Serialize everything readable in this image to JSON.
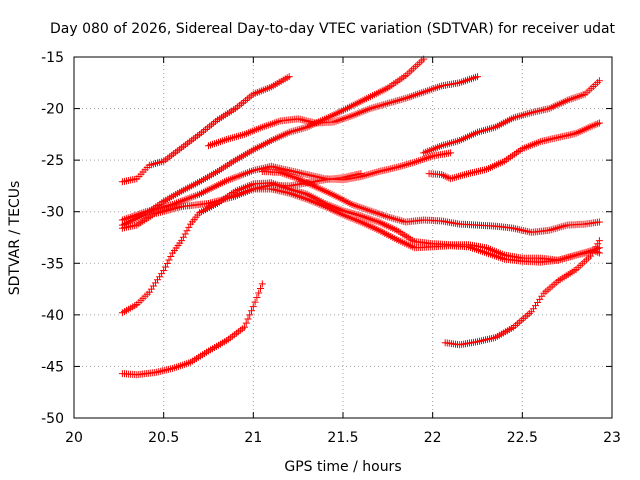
{
  "chart_data": {
    "type": "scatter",
    "title": "Day 080 of 2026, Sidereal Day-to-day VTEC variation (SDTVAR) for receiver udat",
    "xlabel": "GPS time / hours",
    "ylabel": "SDTVAR / TECUs",
    "xlim": [
      20,
      23
    ],
    "ylim": [
      -50,
      -15
    ],
    "xticks": [
      {
        "v": 20,
        "label": "20"
      },
      {
        "v": 20.5,
        "label": "20.5"
      },
      {
        "v": 21,
        "label": "21"
      },
      {
        "v": 21.5,
        "label": "21.5"
      },
      {
        "v": 22,
        "label": "22"
      },
      {
        "v": 22.5,
        "label": "22.5"
      },
      {
        "v": 23,
        "label": "23"
      }
    ],
    "yticks": [
      {
        "v": -15,
        "label": "-15"
      },
      {
        "v": -20,
        "label": "-20"
      },
      {
        "v": -25,
        "label": "-25"
      },
      {
        "v": -30,
        "label": "-30"
      },
      {
        "v": -35,
        "label": "-35"
      },
      {
        "v": -40,
        "label": "-40"
      },
      {
        "v": -45,
        "label": "-45"
      },
      {
        "v": -50,
        "label": "-50"
      }
    ],
    "grid": true,
    "marker": "+",
    "marker_color": "#ff0000",
    "series": [
      {
        "name": "s1",
        "points": [
          [
            20.27,
            -27.1
          ],
          [
            20.35,
            -26.8
          ],
          [
            20.42,
            -25.5
          ],
          [
            20.5,
            -25.1
          ],
          [
            20.6,
            -23.8
          ],
          [
            20.7,
            -22.5
          ],
          [
            20.8,
            -21.1
          ],
          [
            20.9,
            -20.0
          ],
          [
            21.0,
            -18.6
          ],
          [
            21.1,
            -17.9
          ],
          [
            21.2,
            -16.9
          ]
        ]
      },
      {
        "name": "s2",
        "points": [
          [
            20.27,
            -31.3
          ],
          [
            20.4,
            -30.2
          ],
          [
            20.5,
            -29.0
          ],
          [
            20.6,
            -28.0
          ],
          [
            20.7,
            -27.1
          ],
          [
            20.8,
            -26.1
          ],
          [
            20.9,
            -25.0
          ],
          [
            21.0,
            -24.0
          ],
          [
            21.1,
            -23.1
          ],
          [
            21.2,
            -22.3
          ],
          [
            21.3,
            -21.8
          ],
          [
            21.45,
            -20.6
          ],
          [
            21.6,
            -19.3
          ],
          [
            21.75,
            -18.0
          ],
          [
            21.85,
            -16.8
          ],
          [
            21.95,
            -15.2
          ]
        ]
      },
      {
        "name": "s3",
        "points": [
          [
            20.27,
            -30.8
          ],
          [
            20.4,
            -30.0
          ],
          [
            20.55,
            -29.3
          ],
          [
            20.7,
            -28.3
          ],
          [
            20.85,
            -27.0
          ],
          [
            21.0,
            -26.0
          ],
          [
            21.1,
            -25.6
          ],
          [
            21.2,
            -26.0
          ],
          [
            21.3,
            -26.4
          ],
          [
            21.4,
            -26.8
          ],
          [
            21.5,
            -26.9
          ],
          [
            21.6,
            -26.6
          ],
          [
            21.7,
            -26.1
          ],
          [
            21.8,
            -25.7
          ],
          [
            21.9,
            -25.2
          ],
          [
            22.0,
            -24.6
          ],
          [
            22.1,
            -24.3
          ]
        ]
      },
      {
        "name": "s4",
        "points": [
          [
            20.27,
            -31.6
          ],
          [
            20.35,
            -31.3
          ],
          [
            20.45,
            -30.2
          ],
          [
            20.6,
            -29.5
          ],
          [
            20.75,
            -29.2
          ],
          [
            20.9,
            -28.5
          ],
          [
            21.0,
            -27.8
          ],
          [
            21.1,
            -27.4
          ],
          [
            21.2,
            -27.5
          ],
          [
            21.3,
            -27.2
          ],
          [
            21.4,
            -26.9
          ],
          [
            21.5,
            -26.7
          ],
          [
            21.6,
            -26.3
          ]
        ]
      },
      {
        "name": "s5",
        "points": [
          [
            20.27,
            -39.8
          ],
          [
            20.35,
            -39.0
          ],
          [
            20.42,
            -37.8
          ],
          [
            20.5,
            -35.7
          ],
          [
            20.55,
            -34.0
          ],
          [
            20.6,
            -32.8
          ],
          [
            20.65,
            -31.2
          ],
          [
            20.7,
            -30.1
          ],
          [
            20.8,
            -29.2
          ],
          [
            20.9,
            -28.0
          ],
          [
            21.0,
            -27.3
          ],
          [
            21.1,
            -27.2
          ],
          [
            21.2,
            -27.8
          ],
          [
            21.3,
            -28.3
          ],
          [
            21.4,
            -29.2
          ],
          [
            21.5,
            -29.9
          ],
          [
            21.6,
            -30.4
          ],
          [
            21.7,
            -31.0
          ],
          [
            21.8,
            -31.8
          ],
          [
            21.9,
            -32.9
          ],
          [
            22.0,
            -33.1
          ],
          [
            22.1,
            -33.2
          ],
          [
            22.2,
            -33.2
          ],
          [
            22.3,
            -33.5
          ],
          [
            22.4,
            -34.2
          ],
          [
            22.5,
            -34.5
          ],
          [
            22.6,
            -34.5
          ],
          [
            22.7,
            -34.7
          ],
          [
            22.8,
            -34.2
          ],
          [
            22.9,
            -33.7
          ],
          [
            22.93,
            -33.5
          ]
        ]
      },
      {
        "name": "s6",
        "points": [
          [
            20.9,
            -28.4
          ],
          [
            21.0,
            -27.8
          ],
          [
            21.1,
            -27.8
          ],
          [
            21.2,
            -28.2
          ],
          [
            21.3,
            -28.8
          ],
          [
            21.4,
            -29.5
          ],
          [
            21.5,
            -30.3
          ],
          [
            21.6,
            -31.0
          ],
          [
            21.7,
            -31.8
          ],
          [
            21.8,
            -32.7
          ],
          [
            21.9,
            -33.5
          ],
          [
            22.0,
            -33.4
          ],
          [
            22.1,
            -33.3
          ],
          [
            22.2,
            -33.4
          ],
          [
            22.3,
            -34.0
          ],
          [
            22.4,
            -34.6
          ],
          [
            22.5,
            -34.8
          ],
          [
            22.6,
            -34.9
          ],
          [
            22.7,
            -34.7
          ],
          [
            22.8,
            -34.2
          ],
          [
            22.9,
            -33.8
          ],
          [
            22.93,
            -34.0
          ]
        ]
      },
      {
        "name": "s7",
        "points": [
          [
            21.05,
            -26.1
          ],
          [
            21.15,
            -26.2
          ],
          [
            21.25,
            -26.8
          ],
          [
            21.35,
            -27.6
          ],
          [
            21.45,
            -28.4
          ],
          [
            21.55,
            -29.3
          ],
          [
            21.65,
            -29.9
          ],
          [
            21.75,
            -30.5
          ],
          [
            21.85,
            -31.0
          ],
          [
            21.95,
            -30.8
          ],
          [
            22.05,
            -30.9
          ],
          [
            22.15,
            -31.2
          ],
          [
            22.25,
            -31.3
          ],
          [
            22.35,
            -31.4
          ],
          [
            22.45,
            -31.6
          ],
          [
            22.55,
            -32.0
          ],
          [
            22.65,
            -31.8
          ],
          [
            22.75,
            -31.3
          ],
          [
            22.85,
            -31.2
          ],
          [
            22.93,
            -31.0
          ]
        ]
      },
      {
        "name": "s8",
        "points": [
          [
            20.27,
            -45.7
          ],
          [
            20.35,
            -45.8
          ],
          [
            20.45,
            -45.6
          ],
          [
            20.55,
            -45.2
          ],
          [
            20.65,
            -44.6
          ],
          [
            20.75,
            -43.5
          ],
          [
            20.85,
            -42.5
          ],
          [
            20.95,
            -41.2
          ],
          [
            21.0,
            -39.2
          ],
          [
            21.05,
            -37.0
          ]
        ]
      },
      {
        "name": "s9",
        "points": [
          [
            20.75,
            -23.6
          ],
          [
            20.85,
            -23.0
          ],
          [
            20.95,
            -22.5
          ],
          [
            21.05,
            -21.8
          ],
          [
            21.15,
            -21.2
          ],
          [
            21.25,
            -21.0
          ],
          [
            21.35,
            -21.4
          ],
          [
            21.45,
            -21.3
          ],
          [
            21.55,
            -20.7
          ],
          [
            21.65,
            -20.0
          ],
          [
            21.75,
            -19.5
          ],
          [
            21.85,
            -19.0
          ],
          [
            21.95,
            -18.4
          ],
          [
            22.05,
            -17.8
          ],
          [
            22.15,
            -17.5
          ],
          [
            22.25,
            -16.9
          ]
        ]
      },
      {
        "name": "s10",
        "points": [
          [
            21.98,
            -26.3
          ],
          [
            22.05,
            -26.4
          ],
          [
            22.1,
            -26.8
          ],
          [
            22.2,
            -26.3
          ],
          [
            22.3,
            -25.9
          ],
          [
            22.4,
            -25.1
          ],
          [
            22.5,
            -23.9
          ],
          [
            22.6,
            -23.2
          ],
          [
            22.7,
            -22.8
          ],
          [
            22.8,
            -22.4
          ],
          [
            22.9,
            -21.6
          ],
          [
            22.93,
            -21.4
          ]
        ]
      },
      {
        "name": "s11",
        "points": [
          [
            21.95,
            -24.3
          ],
          [
            22.05,
            -23.6
          ],
          [
            22.15,
            -23.1
          ],
          [
            22.25,
            -22.3
          ],
          [
            22.35,
            -21.8
          ],
          [
            22.45,
            -20.9
          ],
          [
            22.55,
            -20.4
          ],
          [
            22.65,
            -20.0
          ],
          [
            22.75,
            -19.2
          ],
          [
            22.85,
            -18.6
          ],
          [
            22.93,
            -17.3
          ]
        ]
      },
      {
        "name": "s12",
        "points": [
          [
            22.07,
            -42.7
          ],
          [
            22.15,
            -42.9
          ],
          [
            22.25,
            -42.6
          ],
          [
            22.35,
            -42.2
          ],
          [
            22.45,
            -41.2
          ],
          [
            22.55,
            -39.7
          ],
          [
            22.62,
            -37.9
          ],
          [
            22.7,
            -36.7
          ],
          [
            22.8,
            -35.6
          ],
          [
            22.88,
            -34.3
          ],
          [
            22.93,
            -32.8
          ]
        ]
      }
    ]
  }
}
